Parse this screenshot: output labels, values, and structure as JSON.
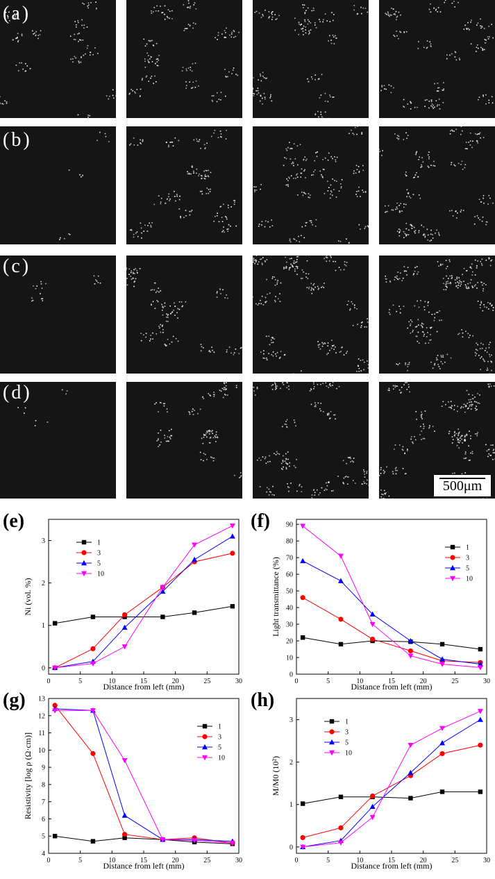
{
  "micrograph_rows": [
    {
      "label": "(a)"
    },
    {
      "label": "(b)"
    },
    {
      "label": "(c)"
    },
    {
      "label": "(d)"
    }
  ],
  "scale_bar": {
    "label": "500μm"
  },
  "chart_data": [
    {
      "panel_label": "(e)",
      "type": "line",
      "xlabel": "Distance from left (mm)",
      "ylabel": "Ni (vol. %)",
      "xlim": [
        0,
        30
      ],
      "ylim": [
        -0.15,
        3.5
      ],
      "xticks": [
        0,
        5,
        10,
        15,
        20,
        25,
        30
      ],
      "yticks": [
        0,
        1,
        2,
        3
      ],
      "x": [
        1,
        7,
        12,
        18,
        23,
        29
      ],
      "legend": "top-left",
      "series": [
        {
          "name": "1",
          "color": "#000000",
          "marker": "square",
          "values": [
            1.05,
            1.2,
            1.2,
            1.2,
            1.3,
            1.45
          ]
        },
        {
          "name": "3",
          "color": "#ff0000",
          "marker": "circle",
          "values": [
            0.0,
            0.45,
            1.25,
            1.9,
            2.5,
            2.7
          ]
        },
        {
          "name": "5",
          "color": "#0000ff",
          "marker": "triangle-up",
          "values": [
            0.0,
            0.15,
            0.95,
            1.8,
            2.55,
            3.1
          ]
        },
        {
          "name": "10",
          "color": "#ff00ff",
          "marker": "triangle-down",
          "values": [
            0.0,
            0.1,
            0.5,
            1.9,
            2.9,
            3.35
          ]
        }
      ]
    },
    {
      "panel_label": "(f)",
      "type": "line",
      "xlabel": "Distance from left (mm)",
      "ylabel": "Light transmittance (%)",
      "xlim": [
        0,
        30
      ],
      "ylim": [
        0,
        93
      ],
      "xticks": [
        0,
        5,
        10,
        15,
        20,
        25,
        30
      ],
      "yticks": [
        0,
        10,
        20,
        30,
        40,
        50,
        60,
        70,
        80,
        90
      ],
      "x": [
        1,
        7,
        12,
        18,
        23,
        29
      ],
      "legend": "top-right",
      "series": [
        {
          "name": "1",
          "color": "#000000",
          "marker": "square",
          "values": [
            22,
            18,
            20,
            19.5,
            18,
            15
          ]
        },
        {
          "name": "3",
          "color": "#ff0000",
          "marker": "circle",
          "values": [
            46,
            33,
            21,
            14,
            8,
            7
          ]
        },
        {
          "name": "5",
          "color": "#0000ff",
          "marker": "triangle-up",
          "values": [
            68,
            56,
            36,
            20,
            9,
            6
          ]
        },
        {
          "name": "10",
          "color": "#ff00ff",
          "marker": "triangle-down",
          "values": [
            89,
            71,
            30,
            11,
            6,
            4
          ]
        }
      ]
    },
    {
      "panel_label": "(g)",
      "type": "line",
      "xlabel": "Distance from left (mm)",
      "ylabel": "Resistivity [log ρ (Ω·cm)]",
      "xlim": [
        0,
        30
      ],
      "ylim": [
        4,
        13
      ],
      "xticks": [
        0,
        5,
        10,
        15,
        20,
        25,
        30
      ],
      "yticks": [
        4,
        5,
        6,
        7,
        8,
        9,
        10,
        11,
        12,
        13
      ],
      "x": [
        1,
        7,
        12,
        18,
        23,
        29
      ],
      "legend": "top-right",
      "series": [
        {
          "name": "1",
          "color": "#000000",
          "marker": "square",
          "values": [
            5.0,
            4.7,
            4.9,
            4.8,
            4.65,
            4.55
          ]
        },
        {
          "name": "3",
          "color": "#ff0000",
          "marker": "circle",
          "values": [
            12.6,
            9.8,
            5.1,
            4.8,
            4.9,
            4.6
          ]
        },
        {
          "name": "5",
          "color": "#0000ff",
          "marker": "triangle-up",
          "values": [
            12.4,
            12.3,
            6.2,
            4.8,
            4.8,
            4.7
          ]
        },
        {
          "name": "10",
          "color": "#ff00ff",
          "marker": "triangle-down",
          "values": [
            12.3,
            12.3,
            9.4,
            4.8,
            4.75,
            4.6
          ]
        }
      ]
    },
    {
      "panel_label": "(h)",
      "type": "line",
      "xlabel": "Distance from left (mm)",
      "ylabel": "M/M0 (10²)",
      "xlim": [
        0,
        30
      ],
      "ylim": [
        -0.15,
        3.5
      ],
      "xticks": [
        0,
        5,
        10,
        15,
        20,
        25,
        30
      ],
      "yticks": [
        0,
        1,
        2,
        3
      ],
      "x": [
        1,
        7,
        12,
        18,
        23,
        29
      ],
      "legend": "top-left",
      "series": [
        {
          "name": "1",
          "color": "#000000",
          "marker": "square",
          "values": [
            1.02,
            1.18,
            1.18,
            1.15,
            1.3,
            1.3
          ]
        },
        {
          "name": "3",
          "color": "#ff0000",
          "marker": "circle",
          "values": [
            0.22,
            0.45,
            1.2,
            1.68,
            2.2,
            2.4
          ]
        },
        {
          "name": "5",
          "color": "#0000ff",
          "marker": "triangle-up",
          "values": [
            0.0,
            0.15,
            0.95,
            1.75,
            2.45,
            3.0
          ]
        },
        {
          "name": "10",
          "color": "#ff00ff",
          "marker": "triangle-down",
          "values": [
            0.0,
            0.1,
            0.7,
            2.4,
            2.8,
            3.2
          ]
        }
      ]
    }
  ]
}
